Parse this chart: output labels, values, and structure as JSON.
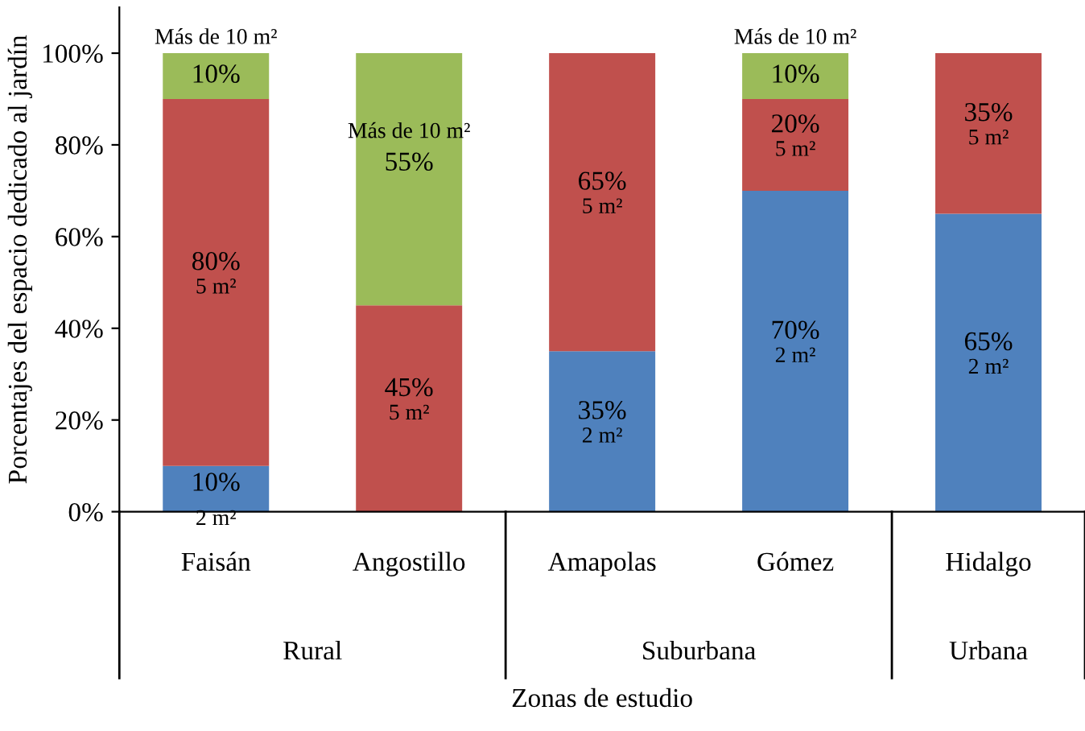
{
  "chart_data": {
    "type": "bar",
    "stacked": true,
    "xlabel": "Zonas de estudio",
    "ylabel": "Porcentajes del espacio dedicado al jardín",
    "categories": [
      "Faisán",
      "Angostillo",
      "Amapolas",
      "Gómez",
      "Hidalgo"
    ],
    "series": [
      {
        "name": "2 m²",
        "color": "#4f81bd",
        "values": [
          10,
          0,
          35,
          70,
          65
        ],
        "value_labels": [
          "10%",
          null,
          "35%",
          "70%",
          "65%"
        ]
      },
      {
        "name": "5 m²",
        "color": "#c0504d",
        "values": [
          80,
          45,
          65,
          20,
          35
        ],
        "value_labels": [
          "80%",
          "45%",
          "65%",
          "20%",
          "35%"
        ]
      },
      {
        "name": "Más de 10 m²",
        "color": "#9bbb59",
        "values": [
          10,
          55,
          0,
          10,
          0
        ],
        "value_labels": [
          "10%",
          "55%",
          null,
          "10%",
          null
        ]
      }
    ],
    "ylim": [
      0,
      110
    ],
    "yticks": [
      {
        "value": 0,
        "label": "0%"
      },
      {
        "value": 20,
        "label": "20%"
      },
      {
        "value": 40,
        "label": "40%"
      },
      {
        "value": 60,
        "label": "60%"
      },
      {
        "value": 80,
        "label": "80%"
      },
      {
        "value": 100,
        "label": "100%"
      }
    ],
    "annotations": [
      "Rural",
      "Suburbana",
      "Urbana"
    ],
    "grid": false,
    "legend": false
  }
}
